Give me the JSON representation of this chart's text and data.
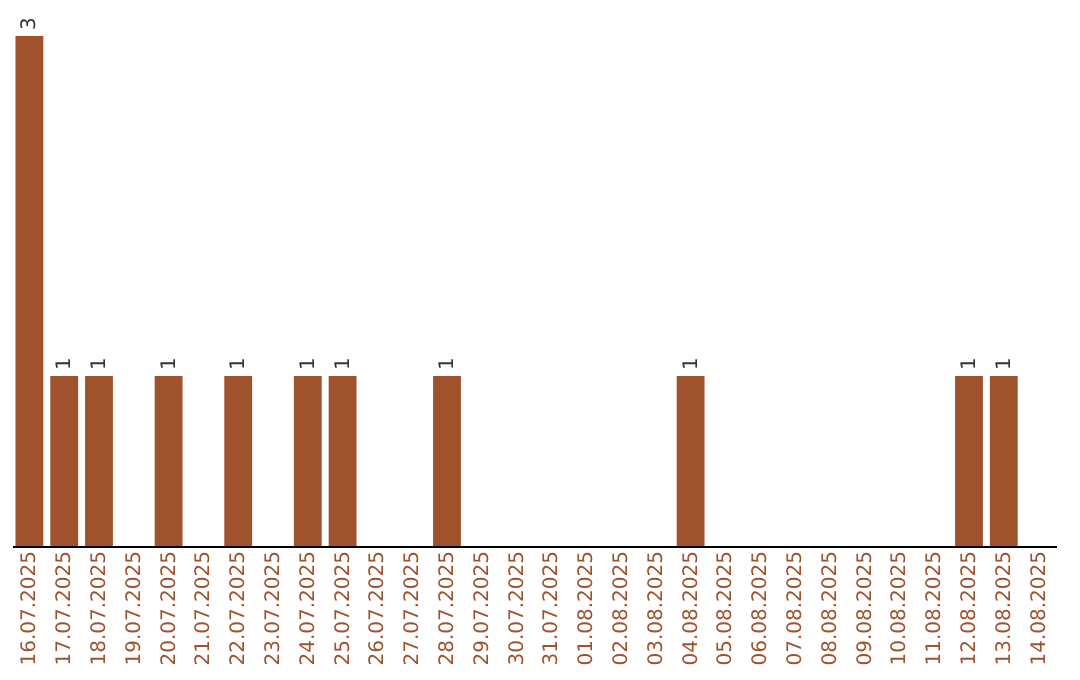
{
  "chart_data": {
    "type": "bar",
    "categories": [
      "16.07.2025",
      "17.07.2025",
      "18.07.2025",
      "19.07.2025",
      "20.07.2025",
      "21.07.2025",
      "22.07.2025",
      "23.07.2025",
      "24.07.2025",
      "25.07.2025",
      "26.07.2025",
      "27.07.2025",
      "28.07.2025",
      "29.07.2025",
      "30.07.2025",
      "31.07.2025",
      "01.08.2025",
      "02.08.2025",
      "03.08.2025",
      "04.08.2025",
      "05.08.2025",
      "06.08.2025",
      "07.08.2025",
      "08.08.2025",
      "09.08.2025",
      "10.08.2025",
      "11.08.2025",
      "12.08.2025",
      "13.08.2025",
      "14.08.2025"
    ],
    "values": [
      3,
      1,
      1,
      0,
      1,
      0,
      1,
      0,
      1,
      1,
      0,
      0,
      1,
      0,
      0,
      0,
      0,
      0,
      0,
      1,
      0,
      0,
      0,
      0,
      0,
      0,
      0,
      1,
      1,
      0
    ],
    "value_labels": [
      "3",
      "1",
      "1",
      null,
      "1",
      null,
      "1",
      null,
      "1",
      "1",
      null,
      null,
      "1",
      null,
      null,
      null,
      null,
      null,
      null,
      "1",
      null,
      null,
      null,
      null,
      null,
      null,
      null,
      "1",
      "1",
      null
    ],
    "color": "#a0522d",
    "grid": false,
    "tick_labels": "x"
  }
}
